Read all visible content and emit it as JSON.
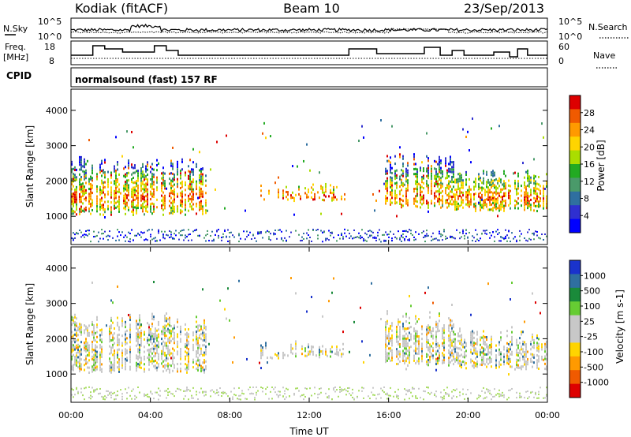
{
  "header": {
    "station": "Kodiak (fitACF)",
    "beam": "Beam 10",
    "date": "23/Sep/2013"
  },
  "noise_panel": {
    "left_label": "N.Sky",
    "right_label": "N.Search",
    "left_ticks": [
      "10^5",
      "10^0"
    ],
    "right_ticks": [
      "10^5",
      "10^0"
    ]
  },
  "freq_panel": {
    "left_label_1": "Freq.",
    "left_label_2": "[MHz]",
    "right_label": "Nave",
    "left_ticks": [
      "18",
      "8"
    ],
    "right_ticks": [
      "60",
      "0"
    ]
  },
  "cpid": {
    "label": "CPID",
    "program": "normalsound (fast) 157 RF"
  },
  "chart_data": [
    {
      "type": "heatmap",
      "panel": "power",
      "ylabel": "Slant Range [km]",
      "yticks": [
        1000,
        2000,
        3000,
        4000
      ],
      "ylim": [
        200,
        4600
      ],
      "colorbar": {
        "label": "Power [dB]",
        "ticks": [
          "28",
          "24",
          "20",
          "16",
          "12",
          "8",
          "4"
        ],
        "colors": [
          "#dd0000",
          "#f05a00",
          "#ff9a00",
          "#ffd400",
          "#aadd00",
          "#22aa22",
          "#4a9a6a",
          "#2f6fa0",
          "#2f2fd0",
          "#0000ff"
        ]
      },
      "echo_regions": [
        {
          "t": [
            0.0,
            6.8
          ],
          "r": [
            1000,
            2700
          ],
          "level": "strong"
        },
        {
          "t": [
            9.5,
            13.8
          ],
          "r": [
            1400,
            1900
          ],
          "level": "medium"
        },
        {
          "t": [
            15.8,
            19.3
          ],
          "r": [
            1200,
            2800
          ],
          "level": "strong"
        },
        {
          "t": [
            19.3,
            24.0
          ],
          "r": [
            1100,
            2300
          ],
          "level": "medium"
        }
      ]
    },
    {
      "type": "heatmap",
      "panel": "velocity",
      "ylabel": "Slant Range [km]",
      "yticks": [
        1000,
        2000,
        3000,
        4000
      ],
      "ylim": [
        200,
        4600
      ],
      "colorbar": {
        "label": "Velocity [m s-1]",
        "ticks": [
          "1000",
          "500",
          "100",
          "25",
          "-25",
          "-100",
          "-500",
          "-1000"
        ],
        "colors": [
          "#1a33cc",
          "#2f6fa0",
          "#1a8a3a",
          "#66cc33",
          "#c8c8c8",
          "#c8c8c8",
          "#ffd400",
          "#ff9a00",
          "#f05a00",
          "#dd0000"
        ]
      }
    }
  ],
  "time_axis": {
    "label": "Time UT",
    "ticks": [
      "00:00",
      "04:00",
      "08:00",
      "12:00",
      "16:00",
      "20:00",
      "00:00"
    ]
  }
}
